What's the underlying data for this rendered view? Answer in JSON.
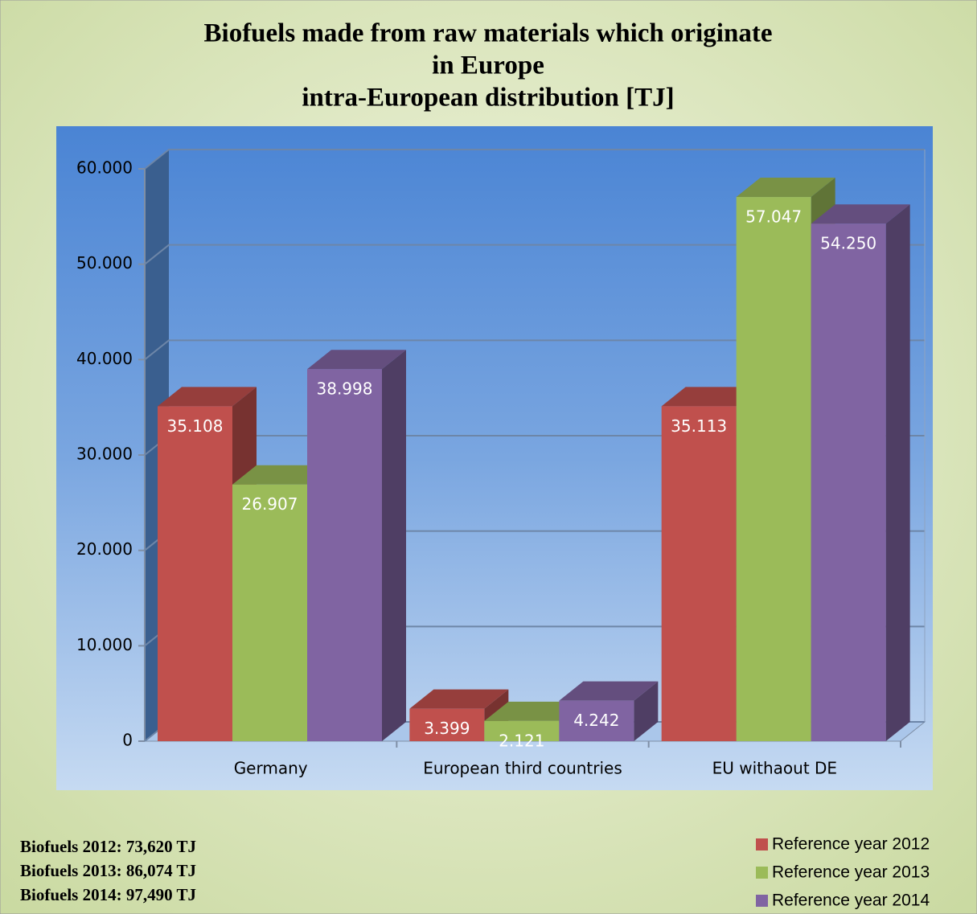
{
  "chart_data": {
    "type": "bar3d",
    "title": [
      "Biofuels made from raw materials which originate",
      "in Europe",
      "intra-European distribution [TJ]"
    ],
    "categories": [
      "Germany",
      "European third countries",
      "EU withaout DE"
    ],
    "series": [
      {
        "name": "Reference year 2012",
        "color": "#c0504d",
        "values": [
          35108,
          3399,
          35113
        ],
        "value_labels": [
          "35.108",
          "3.399",
          "35.113"
        ]
      },
      {
        "name": "Reference year 2013",
        "color": "#9bbb59",
        "values": [
          26907,
          2121,
          57047
        ],
        "value_labels": [
          "26.907",
          "2.121",
          "57.047"
        ]
      },
      {
        "name": "Reference year 2014",
        "color": "#8064a2",
        "values": [
          38998,
          4242,
          54250
        ],
        "value_labels": [
          "38.998",
          "4.242",
          "54.250"
        ]
      }
    ],
    "ylim": [
      0,
      60000
    ],
    "yticks": [
      0,
      {
        "value": 10000,
        "label": "10.000"
      },
      {
        "value": 20000,
        "label": "20.000"
      },
      {
        "value": 30000,
        "label": "30.000"
      },
      {
        "value": 40000,
        "label": "40.000"
      },
      {
        "value": 50000,
        "label": "50.000"
      },
      {
        "value": 60000,
        "label": "60.000"
      }
    ],
    "grid": true,
    "legend": "bottom-right",
    "annotations": [
      "Biofuels 2012: 73,620 TJ",
      "Biofuels 2013: 86,074 TJ",
      "Biofuels 2014: 97,490 TJ"
    ]
  }
}
